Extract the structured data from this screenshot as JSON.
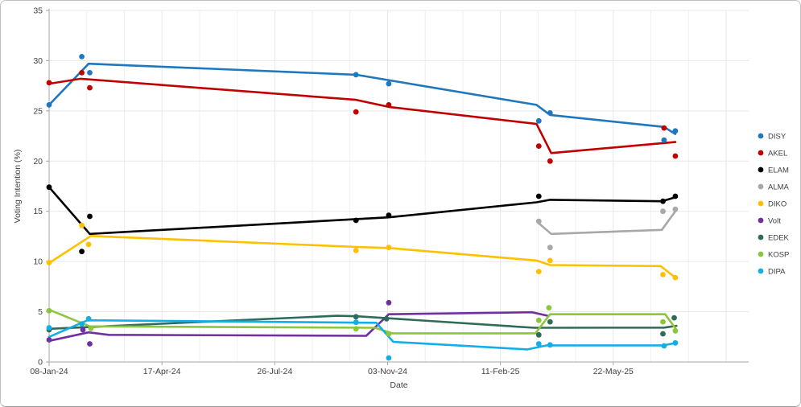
{
  "chart_data": {
    "type": "scatter",
    "title": "",
    "xlabel": "Date",
    "ylabel": "Voting Intention (%)",
    "ylim": [
      0,
      35
    ],
    "y_ticks": [
      0,
      5,
      10,
      15,
      20,
      25,
      30,
      35
    ],
    "x_axis": {
      "tick_labels": [
        "08-Jan-24",
        "17-Apr-24",
        "26-Jul-24",
        "03-Nov-24",
        "11-Feb-25",
        "22-May-25"
      ],
      "tick_days": [
        0,
        100,
        200,
        300,
        400,
        500
      ],
      "range_days": [
        0,
        620
      ],
      "minor_grid_step_days": 33.3333
    },
    "grid": true,
    "legend_position": "right",
    "colors": {
      "axis_line": "#a6a6a6",
      "grid_minor": "#f0f0f0",
      "grid_major": "#e7e7e7",
      "tick_text": "#3f3f3f"
    },
    "series": [
      {
        "name": "DISY",
        "color": "#1F78BE",
        "dots": [
          [
            0,
            25.6
          ],
          [
            29,
            30.4
          ],
          [
            36,
            28.8
          ],
          [
            272,
            28.6
          ],
          [
            301,
            27.7
          ],
          [
            434,
            24.0
          ],
          [
            444,
            24.8
          ],
          [
            545,
            22.1
          ],
          [
            555,
            23.0
          ]
        ],
        "trend": [
          [
            0,
            25.6
          ],
          [
            35,
            29.7
          ],
          [
            272,
            28.6
          ],
          [
            432,
            25.6
          ],
          [
            444,
            24.6
          ],
          [
            545,
            23.4
          ],
          [
            555,
            22.7
          ]
        ]
      },
      {
        "name": "AKEL",
        "color": "#C00000",
        "dots": [
          [
            0,
            27.8
          ],
          [
            29,
            28.8
          ],
          [
            36,
            27.3
          ],
          [
            272,
            24.9
          ],
          [
            301,
            25.6
          ],
          [
            434,
            21.5
          ],
          [
            444,
            20.0
          ],
          [
            545,
            23.3
          ],
          [
            555,
            20.5
          ]
        ],
        "trend": [
          [
            0,
            27.7
          ],
          [
            28,
            28.2
          ],
          [
            272,
            26.1
          ],
          [
            301,
            25.4
          ],
          [
            432,
            23.7
          ],
          [
            445,
            20.8
          ],
          [
            555,
            21.9
          ]
        ]
      },
      {
        "name": "ELAM",
        "color": "#000000",
        "dots": [
          [
            0,
            17.4
          ],
          [
            29,
            11.0
          ],
          [
            36,
            14.5
          ],
          [
            272,
            14.1
          ],
          [
            301,
            14.6
          ],
          [
            434,
            16.5
          ],
          [
            544,
            16.0
          ],
          [
            555,
            16.5
          ]
        ],
        "trend": [
          [
            0,
            17.4
          ],
          [
            36,
            12.75
          ],
          [
            301,
            14.4
          ],
          [
            432,
            15.9
          ],
          [
            444,
            16.15
          ],
          [
            543,
            16.0
          ],
          [
            555,
            16.4
          ]
        ]
      },
      {
        "name": "ALMA",
        "color": "#A8A8A8",
        "dots": [
          [
            434,
            14.0
          ],
          [
            444,
            11.4
          ],
          [
            544,
            15.0
          ],
          [
            555,
            15.2
          ]
        ],
        "trend": [
          [
            433,
            13.9
          ],
          [
            445,
            12.75
          ],
          [
            543,
            13.15
          ],
          [
            555,
            15.0
          ]
        ]
      },
      {
        "name": "DIKO",
        "color": "#FFC000",
        "dots": [
          [
            0,
            9.9
          ],
          [
            29,
            13.6
          ],
          [
            35,
            11.7
          ],
          [
            272,
            11.1
          ],
          [
            301,
            11.4
          ],
          [
            434,
            9.0
          ],
          [
            444,
            10.1
          ],
          [
            544,
            8.7
          ],
          [
            555,
            8.4
          ]
        ],
        "trend": [
          [
            0,
            9.85
          ],
          [
            37,
            12.55
          ],
          [
            272,
            11.45
          ],
          [
            301,
            11.35
          ],
          [
            432,
            10.1
          ],
          [
            444,
            9.65
          ],
          [
            542,
            9.55
          ],
          [
            555,
            8.4
          ]
        ]
      },
      {
        "name": "Volt",
        "color": "#7030A0",
        "dots": [
          [
            0,
            2.2
          ],
          [
            30,
            3.2
          ],
          [
            36,
            1.8
          ],
          [
            301,
            5.9
          ]
        ],
        "trend": [
          [
            0,
            2.1
          ],
          [
            35,
            2.95
          ],
          [
            53,
            2.7
          ],
          [
            281,
            2.6
          ],
          [
            301,
            4.75
          ],
          [
            428,
            4.95
          ],
          [
            442,
            4.6
          ]
        ]
      },
      {
        "name": "EDEK",
        "color": "#2E6B58",
        "dots": [
          [
            0,
            3.2
          ],
          [
            272,
            4.5
          ],
          [
            299,
            4.3
          ],
          [
            434,
            2.7
          ],
          [
            444,
            4.0
          ],
          [
            544,
            2.8
          ],
          [
            554,
            4.4
          ]
        ],
        "trend": [
          [
            0,
            3.3
          ],
          [
            255,
            4.6
          ],
          [
            273,
            4.55
          ],
          [
            430,
            3.4
          ],
          [
            545,
            3.42
          ],
          [
            556,
            3.6
          ]
        ]
      },
      {
        "name": "KOSP",
        "color": "#8CC63F",
        "dots": [
          [
            0,
            5.1
          ],
          [
            37,
            3.35
          ],
          [
            272,
            3.3
          ],
          [
            301,
            2.8
          ],
          [
            434,
            4.15
          ],
          [
            443,
            5.4
          ],
          [
            544,
            4.0
          ],
          [
            555,
            3.1
          ]
        ],
        "trend": [
          [
            0,
            5.2
          ],
          [
            36,
            3.55
          ],
          [
            289,
            3.4
          ],
          [
            304,
            2.85
          ],
          [
            431,
            2.85
          ],
          [
            444,
            4.75
          ],
          [
            546,
            4.75
          ],
          [
            556,
            3.2
          ]
        ]
      },
      {
        "name": "DIPA",
        "color": "#12AEE6",
        "dots": [
          [
            0,
            3.4
          ],
          [
            29,
            3.8
          ],
          [
            35,
            4.3
          ],
          [
            272,
            3.95
          ],
          [
            301,
            0.4
          ],
          [
            434,
            1.8
          ],
          [
            444,
            1.7
          ],
          [
            545,
            1.6
          ],
          [
            555,
            1.9
          ]
        ],
        "trend": [
          [
            0,
            2.5
          ],
          [
            34,
            4.15
          ],
          [
            290,
            3.9
          ],
          [
            305,
            2.0
          ],
          [
            424,
            1.25
          ],
          [
            441,
            1.65
          ],
          [
            544,
            1.65
          ],
          [
            556,
            1.9
          ]
        ]
      }
    ]
  }
}
